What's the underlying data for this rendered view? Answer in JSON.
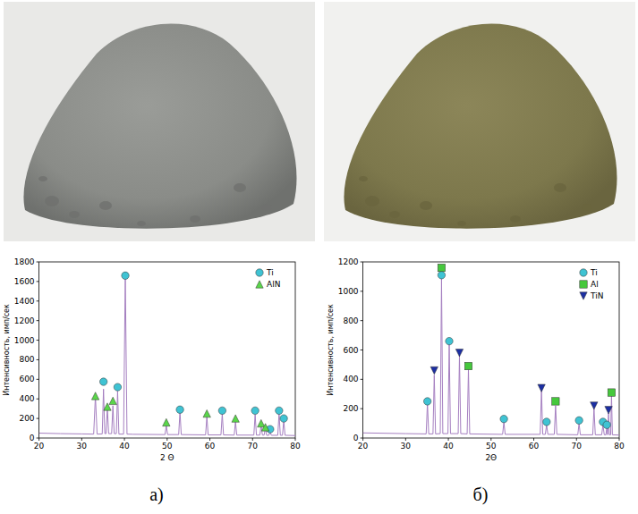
{
  "panel_labels": [
    "a)",
    "б)"
  ],
  "chart_data": [
    {
      "type": "line",
      "xlabel": "2 Θ",
      "ylabel": "Интенсивность, имп/сек",
      "xlim": [
        20,
        80
      ],
      "xticks": [
        20,
        30,
        40,
        50,
        60,
        70,
        80
      ],
      "ylim": [
        0,
        1800
      ],
      "yticks": [
        0,
        200,
        400,
        600,
        800,
        1000,
        1200,
        1400,
        1600,
        1800
      ],
      "grid": false,
      "legend": "upper right",
      "series": [
        {
          "type": "line",
          "color": "#a57fc0",
          "x": [
            20,
            25,
            30,
            32.8,
            33.2,
            33.6,
            34.8,
            35.1,
            35.4,
            35.7,
            36.0,
            36.3,
            37.0,
            37.3,
            37.6,
            38.1,
            38.4,
            38.7,
            39.8,
            40.2,
            40.6,
            42,
            49.5,
            49.8,
            50.1,
            52.7,
            53.0,
            53.3,
            59.0,
            59.3,
            59.6,
            62.6,
            62.9,
            63.2,
            65.7,
            66.0,
            66.3,
            70.3,
            70.6,
            70.9,
            71.7,
            72.0,
            72.3,
            72.7,
            73.0,
            73.3,
            73.8,
            74.1,
            74.4,
            75.9,
            76.2,
            76.5,
            77.0,
            77.3,
            77.6,
            80
          ],
          "values": [
            50,
            45,
            42,
            40,
            430,
            40,
            42,
            500,
            45,
            45,
            310,
            45,
            45,
            330,
            45,
            45,
            480,
            40,
            40,
            1670,
            40,
            38,
            35,
            130,
            35,
            35,
            270,
            35,
            32,
            220,
            32,
            32,
            250,
            32,
            30,
            170,
            30,
            30,
            240,
            30,
            30,
            130,
            30,
            30,
            100,
            28,
            28,
            60,
            28,
            28,
            250,
            28,
            28,
            180,
            28,
            25
          ]
        },
        {
          "name": "Ti",
          "type": "scatter",
          "marker": "circle",
          "color": "#3fc3d3",
          "x": [
            35.1,
            38.4,
            40.2,
            53.0,
            62.9,
            70.6,
            74.1,
            76.2,
            77.3
          ],
          "values": [
            575,
            520,
            1660,
            290,
            280,
            280,
            90,
            280,
            200
          ]
        },
        {
          "name": "AlN",
          "type": "scatter",
          "marker": "triangle",
          "color": "#5ad64a",
          "x": [
            33.2,
            36.0,
            37.3,
            49.8,
            59.3,
            66.0,
            72.0,
            73.0
          ],
          "values": [
            430,
            320,
            380,
            160,
            250,
            200,
            150,
            110
          ]
        }
      ]
    },
    {
      "type": "line",
      "xlabel": "2Θ",
      "ylabel": "Интенсивность, имп/сек",
      "xlim": [
        20,
        80
      ],
      "xticks": [
        20,
        30,
        40,
        50,
        60,
        70,
        80
      ],
      "ylim": [
        0,
        1200
      ],
      "yticks": [
        0,
        200,
        400,
        600,
        800,
        1000,
        1200
      ],
      "grid": false,
      "legend": "upper right",
      "series": [
        {
          "type": "line",
          "color": "#a57fc0",
          "x": [
            20,
            30,
            34.8,
            35.1,
            35.4,
            36.4,
            36.7,
            37.0,
            38.1,
            38.4,
            38.7,
            39.9,
            40.2,
            40.5,
            42.3,
            42.6,
            42.9,
            44.4,
            44.7,
            45.0,
            52.7,
            53.0,
            53.3,
            61.5,
            61.8,
            62.1,
            62.7,
            63.0,
            63.3,
            64.8,
            65.1,
            65.4,
            70.3,
            70.6,
            70.9,
            73.8,
            74.1,
            74.4,
            75.9,
            76.2,
            76.5,
            76.9,
            77.1,
            77.3,
            77.5,
            77.7,
            78.0,
            78.2,
            78.4,
            80
          ],
          "values": [
            35,
            30,
            28,
            240,
            28,
            28,
            430,
            28,
            30,
            1090,
            30,
            30,
            640,
            30,
            30,
            560,
            30,
            28,
            470,
            28,
            25,
            110,
            25,
            25,
            330,
            25,
            25,
            90,
            25,
            25,
            220,
            25,
            22,
            100,
            22,
            22,
            200,
            22,
            22,
            90,
            22,
            22,
            80,
            22,
            170,
            22,
            22,
            300,
            22,
            20
          ]
        },
        {
          "name": "Ti",
          "type": "scatter",
          "marker": "circle",
          "color": "#3fc3d3",
          "x": [
            35.1,
            38.4,
            40.2,
            53.0,
            63.0,
            70.6,
            76.2,
            77.1
          ],
          "values": [
            250,
            1110,
            660,
            130,
            110,
            120,
            110,
            90
          ]
        },
        {
          "name": "Al",
          "type": "scatter",
          "marker": "square",
          "color": "#45c83c",
          "x": [
            38.4,
            44.7,
            65.1,
            78.2
          ],
          "values": [
            1160,
            490,
            250,
            310
          ]
        },
        {
          "name": "TiN",
          "type": "scatter",
          "marker": "triangle_down",
          "color": "#1c2fa3",
          "x": [
            36.7,
            42.6,
            61.8,
            74.1,
            77.5
          ],
          "values": [
            460,
            580,
            340,
            220,
            190
          ]
        }
      ]
    }
  ]
}
